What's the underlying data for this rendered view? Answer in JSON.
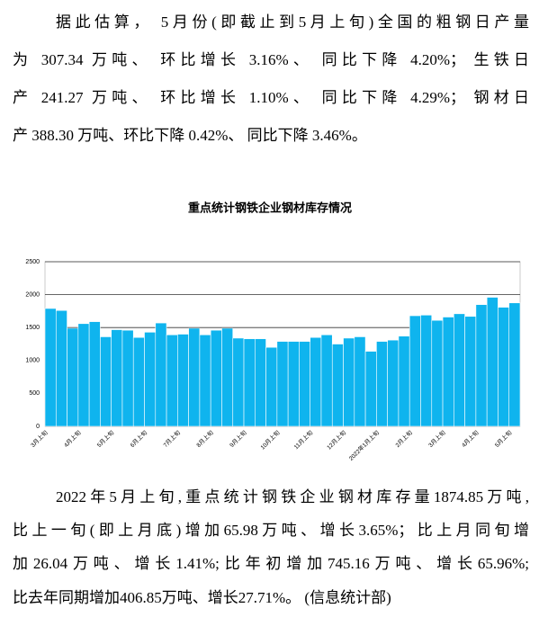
{
  "intro": {
    "lines": [
      "据此估算，  5月份(即截止到5月上旬)全国的粗钢日产量",
      "为 307.34 万吨、 环比增长 3.16%、 同比下降 4.20%；  生铁日",
      "产 241.27 万吨、 环比增长 1.10%、 同比下降 4.29%；  钢材日",
      "产 388.30 万吨、环比下降 0.42%、 同比下降 3.46%。"
    ]
  },
  "chart_data": {
    "type": "bar",
    "title": "重点统计钢铁企业钢材库存情况",
    "categories": [
      "3月上旬",
      null,
      null,
      "4月上旬",
      null,
      null,
      "5月上旬",
      null,
      null,
      "6月上旬",
      null,
      null,
      "7月上旬",
      null,
      null,
      "8月上旬",
      null,
      null,
      "9月上旬",
      null,
      null,
      "10月上旬",
      null,
      null,
      "11月上旬",
      null,
      null,
      "12月上旬",
      null,
      null,
      "2022年1月上旬",
      null,
      null,
      "2月上旬",
      null,
      null,
      "3月上旬",
      null,
      null,
      "4月上旬",
      null,
      null,
      "5月上旬"
    ],
    "values": [
      1790,
      1760,
      1490,
      1560,
      1590,
      1360,
      1468,
      1460,
      1350,
      1430,
      1570,
      1390,
      1400,
      1490,
      1390,
      1460,
      1490,
      1340,
      1330,
      1330,
      1200,
      1290,
      1290,
      1290,
      1350,
      1390,
      1250,
      1340,
      1360,
      1140,
      1290,
      1310,
      1370,
      1680,
      1690,
      1610,
      1660,
      1710,
      1670,
      1849,
      1960,
      1809,
      1875
    ],
    "color": "#0fb4ee",
    "ylim": [
      0,
      2500
    ],
    "yticks": [
      0,
      500,
      1000,
      1500,
      2000,
      2500
    ],
    "grid": true
  },
  "summary": {
    "lines": [
      "2022年5月上旬,重点统计钢铁企业钢材库存量1874.85万吨,",
      "比上一旬(即上月底)增加65.98万吨、增长3.65%；比上月同旬增",
      "加26.04万吨、增长1.41%;比年初增加745.16万吨、增长65.96%;",
      "比去年同期增加406.85万吨、增长27.71%。 (信息统计部)"
    ]
  }
}
